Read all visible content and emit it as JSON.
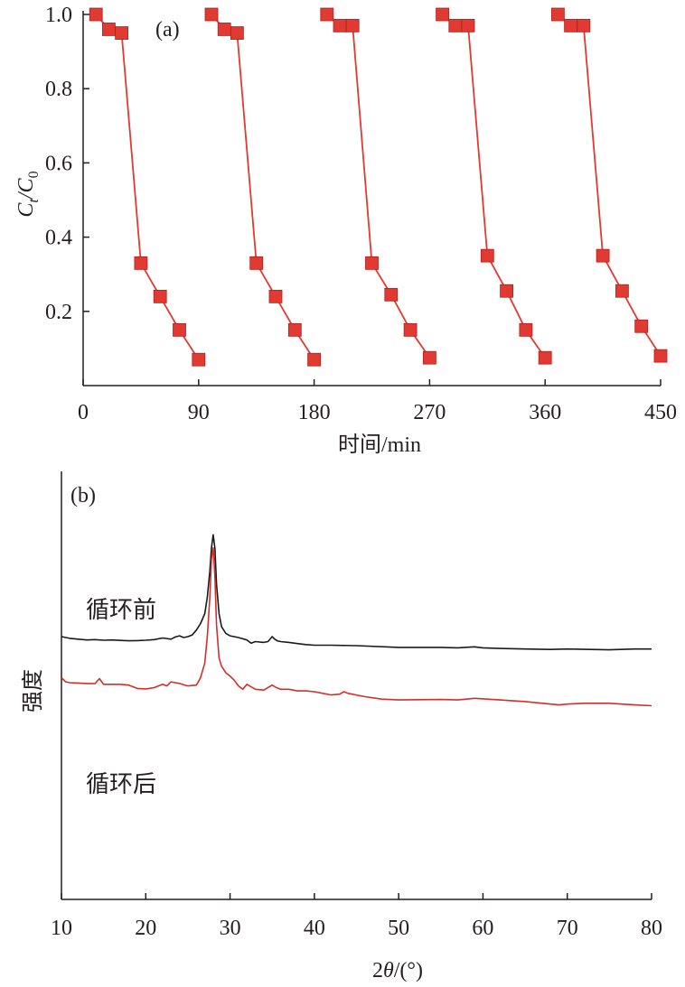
{
  "chart_data": [
    {
      "type": "line",
      "panel_label": "(a)",
      "xlabel": "时间/min",
      "ylabel_main": "C",
      "ylabel_sub1": "t",
      "ylabel_mid": "/C",
      "ylabel_sub2": "0",
      "xlim": [
        0,
        450
      ],
      "ylim": [
        0,
        1.0
      ],
      "xticks": [
        "0",
        "90",
        "180",
        "270",
        "360",
        "450"
      ],
      "yticks": [
        "0.2",
        "0.4",
        "0.6",
        "0.8",
        "1.0"
      ],
      "grid": false,
      "series_color": "#e03a32",
      "marker": "square",
      "cycles": [
        {
          "x": [
            10,
            20,
            30,
            45,
            60,
            75,
            90
          ],
          "y": [
            1.0,
            0.96,
            0.95,
            0.33,
            0.24,
            0.15,
            0.07
          ]
        },
        {
          "x": [
            100,
            110,
            120,
            135,
            150,
            165,
            180
          ],
          "y": [
            1.0,
            0.96,
            0.95,
            0.33,
            0.24,
            0.15,
            0.07
          ]
        },
        {
          "x": [
            190,
            200,
            210,
            225,
            240,
            255,
            270
          ],
          "y": [
            1.0,
            0.97,
            0.97,
            0.33,
            0.245,
            0.15,
            0.075
          ]
        },
        {
          "x": [
            280,
            290,
            300,
            315,
            330,
            345,
            360
          ],
          "y": [
            1.0,
            0.97,
            0.97,
            0.35,
            0.255,
            0.15,
            0.075
          ]
        },
        {
          "x": [
            370,
            380,
            390,
            405,
            420,
            435,
            450
          ],
          "y": [
            1.0,
            0.97,
            0.97,
            0.35,
            0.255,
            0.16,
            0.08
          ]
        }
      ]
    },
    {
      "type": "line",
      "panel_label": "(b)",
      "xlabel": "2θ/(°)",
      "ylabel": "强度",
      "xlim": [
        10,
        80
      ],
      "xticks": [
        "10",
        "20",
        "30",
        "40",
        "50",
        "60",
        "70",
        "80"
      ],
      "grid": false,
      "series": [
        {
          "name": "循环前",
          "color": "#1a1a1a",
          "x": [
            10,
            11,
            12,
            13,
            14,
            15,
            16,
            17,
            18,
            19,
            20,
            21,
            22,
            23,
            23.5,
            24,
            24.5,
            25,
            25.5,
            26,
            26.5,
            27,
            27.3,
            27.6,
            27.8,
            28,
            28.2,
            28.4,
            28.7,
            29,
            29.5,
            30,
            31,
            32,
            32.5,
            33,
            34,
            34.5,
            35,
            35.3,
            35.6,
            36,
            37,
            38,
            39,
            40,
            42,
            45,
            50,
            55,
            57,
            59,
            60,
            62,
            65,
            68,
            70,
            72,
            75,
            78,
            80
          ],
          "y": [
            2.8,
            2.7,
            2.65,
            2.6,
            2.62,
            2.58,
            2.6,
            2.57,
            2.55,
            2.56,
            2.58,
            2.62,
            2.72,
            2.65,
            2.78,
            2.85,
            2.75,
            2.8,
            2.9,
            3.2,
            3.6,
            4.2,
            5.2,
            6.8,
            8.2,
            9.0,
            8.2,
            6.0,
            4.2,
            3.4,
            3.0,
            2.85,
            2.75,
            2.6,
            2.4,
            2.5,
            2.45,
            2.5,
            2.8,
            2.65,
            2.55,
            2.5,
            2.45,
            2.38,
            2.32,
            2.28,
            2.28,
            2.25,
            2.15,
            2.15,
            2.12,
            2.18,
            2.12,
            2.08,
            2.05,
            2.02,
            2.05,
            2.03,
            2.0,
            2.05,
            2.05
          ]
        },
        {
          "name": "循环后",
          "color": "#d0302c",
          "x": [
            10,
            10.5,
            11,
            12,
            13,
            14,
            14.5,
            15,
            16,
            17,
            18,
            19,
            20,
            21,
            22,
            22.5,
            23,
            24,
            25,
            26,
            26.5,
            27,
            27.3,
            27.6,
            27.8,
            28,
            28.2,
            28.4,
            28.7,
            29,
            29.5,
            30,
            30.5,
            31,
            31.5,
            32,
            33,
            34,
            35,
            35.5,
            36,
            37,
            38,
            39,
            40,
            41,
            42,
            43,
            43.5,
            44,
            46,
            48,
            50,
            55,
            57,
            59,
            62,
            65,
            69,
            70,
            72,
            75,
            78,
            80
          ],
          "y": [
            0.3,
            0.05,
            0.0,
            -0.02,
            -0.05,
            -0.05,
            0.25,
            -0.1,
            -0.1,
            -0.1,
            -0.15,
            -0.35,
            -0.38,
            -0.3,
            -0.1,
            -0.2,
            0.05,
            -0.05,
            -0.2,
            -0.15,
            0.3,
            1.2,
            2.8,
            5.2,
            7.5,
            8.2,
            6.5,
            3.5,
            1.5,
            1.0,
            0.6,
            0.4,
            0.15,
            -0.2,
            -0.4,
            -0.1,
            -0.4,
            -0.45,
            -0.15,
            -0.3,
            -0.4,
            -0.4,
            -0.5,
            -0.5,
            -0.55,
            -0.65,
            -0.75,
            -0.7,
            -0.55,
            -0.65,
            -0.85,
            -1.0,
            -1.05,
            -1.02,
            -1.05,
            -0.95,
            -1.05,
            -1.15,
            -1.35,
            -1.3,
            -1.25,
            -1.25,
            -1.35,
            -1.4
          ]
        }
      ]
    }
  ]
}
